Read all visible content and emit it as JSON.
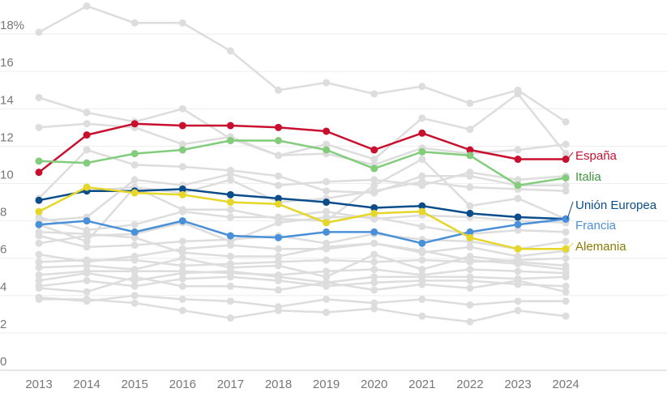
{
  "chart_data": {
    "type": "line",
    "title": "",
    "xlabel": "",
    "ylabel": "",
    "x": [
      "2013",
      "2014",
      "2015",
      "2016",
      "2017",
      "2018",
      "2019",
      "2020",
      "2021",
      "2022",
      "2023",
      "2024"
    ],
    "ylim": [
      0,
      19
    ],
    "y_ticks": [
      {
        "value": 0,
        "label": "0"
      },
      {
        "value": 2,
        "label": "2"
      },
      {
        "value": 4,
        "label": "4"
      },
      {
        "value": 6,
        "label": "6"
      },
      {
        "value": 8,
        "label": "8"
      },
      {
        "value": 10,
        "label": "10"
      },
      {
        "value": 12,
        "label": "12"
      },
      {
        "value": 14,
        "label": "14"
      },
      {
        "value": 16,
        "label": "16"
      },
      {
        "value": 18,
        "label": "18%"
      }
    ],
    "grid": true,
    "legend": "labels at line ends (right)",
    "series": [
      {
        "name": "España",
        "color": "#c8102e",
        "values": [
          10.6,
          12.6,
          13.2,
          13.1,
          13.1,
          13.0,
          12.8,
          11.8,
          12.7,
          11.8,
          11.3,
          11.3
        ]
      },
      {
        "name": "Italia",
        "color": "#82cc7c",
        "values": [
          11.2,
          11.1,
          11.6,
          11.8,
          12.3,
          12.3,
          11.8,
          10.8,
          11.7,
          11.5,
          9.9,
          10.3
        ]
      },
      {
        "name": "Unión Europea",
        "color": "#0b4d8a",
        "values": [
          9.1,
          9.6,
          9.6,
          9.7,
          9.4,
          9.2,
          9.0,
          8.7,
          8.8,
          8.4,
          8.2,
          8.1
        ]
      },
      {
        "name": "Francia",
        "color": "#4a90d9",
        "values": [
          7.8,
          8.0,
          7.4,
          8.0,
          7.2,
          7.1,
          7.4,
          7.4,
          6.8,
          7.4,
          7.8,
          8.1
        ]
      },
      {
        "name": "Alemania",
        "color": "#e5d629",
        "values": [
          8.5,
          9.8,
          9.5,
          9.4,
          9.0,
          8.9,
          7.9,
          8.4,
          8.5,
          7.1,
          6.5,
          6.5
        ]
      }
    ],
    "background_series_color": "#dddddd",
    "background_series": [
      [
        18.1,
        19.5,
        18.6,
        18.6,
        17.1,
        15.0,
        15.4,
        14.8,
        15.2,
        14.3,
        15.0,
        13.3
      ],
      [
        14.6,
        13.8,
        13.3,
        14.0,
        12.4,
        11.5,
        12.1,
        11.3,
        13.5,
        12.9,
        14.8,
        11.6
      ],
      [
        13.0,
        13.2,
        13.0,
        12.1,
        12.5,
        11.5,
        11.6,
        11.0,
        11.9,
        11.6,
        11.8,
        12.1
      ],
      [
        9.2,
        11.8,
        11.0,
        10.9,
        10.7,
        10.4,
        9.6,
        9.5,
        10.4,
        10.4,
        9.9,
        9.9
      ],
      [
        8.0,
        8.2,
        10.2,
        9.9,
        10.5,
        9.9,
        10.1,
        10.2,
        9.9,
        10.6,
        10.2,
        10.4
      ],
      [
        9.1,
        9.6,
        9.8,
        9.5,
        10.2,
        9.0,
        9.2,
        9.6,
        10.1,
        9.8,
        9.7,
        9.6
      ],
      [
        7.8,
        6.9,
        9.8,
        8.6,
        8.6,
        8.1,
        8.0,
        9.9,
        11.3,
        8.8,
        9.2,
        8.1
      ],
      [
        8.2,
        7.5,
        7.8,
        8.5,
        8.2,
        8.2,
        8.5,
        8.1,
        8.3,
        8.2,
        8.0,
        7.9
      ],
      [
        6.8,
        7.2,
        7.3,
        7.9,
        6.9,
        7.9,
        8.2,
        8.2,
        7.7,
        7.3,
        7.5,
        7.4
      ],
      [
        7.2,
        6.6,
        6.7,
        6.9,
        7.0,
        7.2,
        6.8,
        7.3,
        7.0,
        6.9,
        6.5,
        6.9
      ],
      [
        6.2,
        5.8,
        6.1,
        6.5,
        6.7,
        6.5,
        6.5,
        6.8,
        6.3,
        6.6,
        6.1,
        6.4
      ],
      [
        5.8,
        5.9,
        5.9,
        5.6,
        5.7,
        5.8,
        5.9,
        5.8,
        5.9,
        5.8,
        5.9,
        6.0
      ],
      [
        5.5,
        5.6,
        5.4,
        6.0,
        5.5,
        5.6,
        5.0,
        6.2,
        5.4,
        6.1,
        5.8,
        5.6
      ],
      [
        5.1,
        5.3,
        5.3,
        5.3,
        5.2,
        5.1,
        5.3,
        5.4,
        5.1,
        5.4,
        5.3,
        5.2
      ],
      [
        4.8,
        5.2,
        4.8,
        5.2,
        5.3,
        5.0,
        4.7,
        5.0,
        5.0,
        5.0,
        4.9,
        5.0
      ],
      [
        4.5,
        4.8,
        4.5,
        4.9,
        5.0,
        4.8,
        4.5,
        4.7,
        4.8,
        4.8,
        4.6,
        4.5
      ],
      [
        4.4,
        4.2,
        5.0,
        4.5,
        4.5,
        4.3,
        4.7,
        4.3,
        4.6,
        4.4,
        4.8,
        4.2
      ],
      [
        3.9,
        3.7,
        4.0,
        3.8,
        3.7,
        3.4,
        3.8,
        3.6,
        3.8,
        3.5,
        3.7,
        3.7
      ],
      [
        3.8,
        3.8,
        3.6,
        3.2,
        2.8,
        3.2,
        3.1,
        3.3,
        2.9,
        2.6,
        3.2,
        2.9
      ],
      [
        7.4,
        7.3,
        7.1,
        6.3,
        6.1,
        6.1,
        6.6,
        6.8,
        6.4,
        5.9,
        5.7,
        5.4
      ]
    ]
  }
}
